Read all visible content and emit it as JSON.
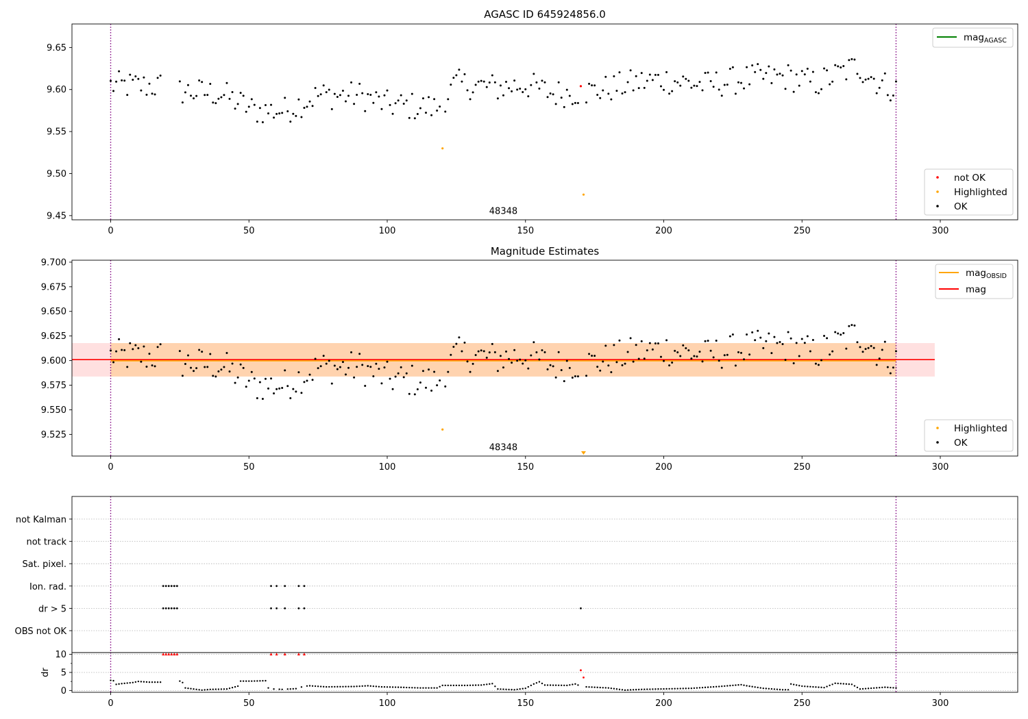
{
  "chart_data": [
    {
      "type": "scatter",
      "title": "AGASC ID 645924856.0",
      "xlim": [
        -14,
        328
      ],
      "ylim": [
        9.445,
        9.678
      ],
      "xticks": [
        0,
        50,
        100,
        150,
        200,
        250,
        300
      ],
      "yticks": [
        9.45,
        9.5,
        9.55,
        9.6,
        9.65
      ],
      "vlines": [
        0,
        284
      ],
      "annotation": {
        "text": "48348",
        "x": 142,
        "y": 9.452
      },
      "legend_lines": [
        {
          "name": "mag_AGASC",
          "color": "#008000"
        }
      ],
      "legend_points": [
        {
          "name": "not OK",
          "color": "#ff0000"
        },
        {
          "name": "Highlighted",
          "color": "#ffa500"
        },
        {
          "name": "OK",
          "color": "#000000"
        }
      ],
      "ok_gaps": [
        [
          19,
          24
        ]
      ],
      "highlighted": [
        [
          120,
          9.53
        ],
        [
          171,
          9.475
        ]
      ],
      "not_ok": [
        [
          170,
          9.604
        ]
      ]
    },
    {
      "type": "scatter",
      "title": "Magnitude Estimates",
      "xlim": [
        -14,
        328
      ],
      "ylim": [
        9.503,
        9.702
      ],
      "xticks": [
        0,
        50,
        100,
        150,
        200,
        250,
        300
      ],
      "yticks": [
        9.525,
        9.55,
        9.575,
        9.6,
        9.625,
        9.65,
        9.675,
        9.7
      ],
      "vlines": [
        0,
        284
      ],
      "annotation": {
        "text": "48348",
        "x": 142,
        "y": 9.509
      },
      "mag_OBSID": {
        "value": 9.6008,
        "band": [
          9.5838,
          9.6178
        ],
        "x_range": [
          0,
          284
        ],
        "color": "#ffa500"
      },
      "mag": {
        "value": 9.601,
        "band": [
          9.5838,
          9.6178
        ],
        "x_range": [
          -14,
          298
        ],
        "color": "#ff0000"
      },
      "legend_lines": [
        {
          "name": "mag_OBSID",
          "color": "#ffa500"
        },
        {
          "name": "mag",
          "color": "#ff0000"
        }
      ],
      "legend_points": [
        {
          "name": "Highlighted",
          "color": "#ffa500"
        },
        {
          "name": "OK",
          "color": "#000000"
        }
      ],
      "highlighted": [
        [
          120,
          9.53
        ]
      ],
      "off_axis_marker": {
        "x": 171,
        "direction": "down"
      }
    },
    {
      "type": "scatter",
      "xlim": [
        -14,
        328
      ],
      "xticks": [
        0,
        50,
        100,
        150,
        200,
        250,
        300
      ],
      "vlines": [
        0,
        284
      ],
      "flag_rows": [
        "not Kalman",
        "not track",
        "Sat. pixel.",
        "Ion. rad.",
        "dr > 5",
        "OBS not OK"
      ],
      "flags": {
        "Ion. rad.": [
          19,
          20,
          21,
          22,
          23,
          24,
          58,
          60,
          63,
          68,
          70
        ],
        "dr > 5": [
          19,
          20,
          21,
          22,
          23,
          24,
          58,
          60,
          63,
          68,
          70,
          170
        ]
      }
    },
    {
      "type": "scatter",
      "ylabel": "dr",
      "xlim": [
        -14,
        328
      ],
      "ylim": [
        -0.5,
        10.5
      ],
      "xticks": [
        0,
        50,
        100,
        150,
        200,
        250,
        300
      ],
      "yticks": [
        0,
        5,
        10
      ],
      "vlines": [
        0,
        284
      ],
      "dr_clipped_x": [
        19,
        20,
        21,
        22,
        23,
        24,
        58,
        60,
        63,
        68,
        70
      ],
      "dr_red": [
        [
          170,
          5.6
        ],
        [
          171,
          3.6
        ]
      ],
      "dr_ok_segments": [
        [
          0,
          2.8
        ],
        [
          1,
          2.7
        ],
        [
          2,
          1.7
        ],
        [
          4,
          1.9
        ],
        [
          8,
          2.2
        ],
        [
          10,
          2.5
        ],
        [
          14,
          2.3
        ],
        [
          18,
          2.3
        ],
        [
          25,
          2.6
        ],
        [
          26,
          2.2
        ],
        [
          27,
          0.7
        ],
        [
          30,
          0.4
        ],
        [
          33,
          0.1
        ],
        [
          36,
          0.3
        ],
        [
          42,
          0.4
        ],
        [
          46,
          1.2
        ],
        [
          47,
          2.6
        ],
        [
          51,
          2.6
        ],
        [
          56,
          2.7
        ],
        [
          57,
          0.7
        ],
        [
          59,
          0.4
        ],
        [
          62,
          0.3
        ],
        [
          67,
          0.5
        ],
        [
          70,
          1.2
        ],
        [
          72,
          1.3
        ],
        [
          78,
          1.0
        ],
        [
          88,
          1.1
        ],
        [
          93,
          1.3
        ],
        [
          98,
          1.0
        ],
        [
          104,
          0.9
        ],
        [
          112,
          0.7
        ],
        [
          118,
          0.7
        ],
        [
          120,
          1.4
        ],
        [
          128,
          1.4
        ],
        [
          134,
          1.5
        ],
        [
          138,
          1.9
        ],
        [
          140,
          0.4
        ],
        [
          146,
          0.2
        ],
        [
          150,
          0.6
        ],
        [
          153,
          1.8
        ],
        [
          155,
          2.4
        ],
        [
          157,
          1.5
        ],
        [
          165,
          1.4
        ],
        [
          168,
          1.8
        ],
        [
          169,
          1.5
        ],
        [
          172,
          1.0
        ],
        [
          180,
          0.7
        ],
        [
          186,
          0.1
        ],
        [
          192,
          0.3
        ],
        [
          198,
          0.4
        ],
        [
          210,
          0.6
        ],
        [
          220,
          1.1
        ],
        [
          228,
          1.6
        ],
        [
          230,
          1.3
        ],
        [
          236,
          0.6
        ],
        [
          243,
          0.2
        ],
        [
          245,
          0.2
        ],
        [
          246,
          1.8
        ],
        [
          250,
          1.2
        ],
        [
          258,
          0.8
        ],
        [
          262,
          2.0
        ],
        [
          268,
          1.7
        ],
        [
          271,
          0.4
        ],
        [
          280,
          0.9
        ],
        [
          284,
          0.7
        ]
      ]
    }
  ]
}
